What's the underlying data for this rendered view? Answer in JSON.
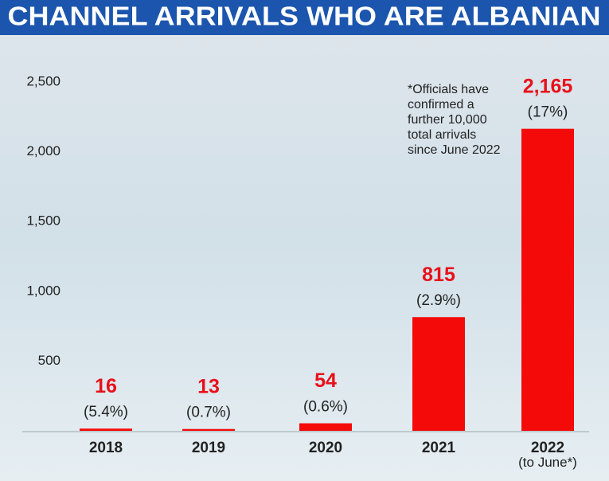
{
  "chart_data": {
    "type": "bar",
    "title": "CHANNEL ARRIVALS WHO ARE ALBANIAN",
    "categories": [
      "2018",
      "2019",
      "2020",
      "2021",
      "2022\n(to June*)"
    ],
    "values": [
      16,
      13,
      54,
      815,
      2165
    ],
    "value_labels": [
      "16",
      "13",
      "54",
      "815",
      "2,165"
    ],
    "share_labels": [
      "(5.4%)",
      "(0.7%)",
      "(0.6%)",
      "(2.9%)",
      "(17%)"
    ],
    "color": "#f50a0a",
    "ylim": [
      0,
      2500
    ],
    "yticks": [
      {
        "value": 500,
        "label": "500"
      },
      {
        "value": 1000,
        "label": "1,000"
      },
      {
        "value": 1500,
        "label": "1,500"
      },
      {
        "value": 2000,
        "label": "2,000"
      },
      {
        "value": 2500,
        "label": "2,500"
      }
    ],
    "annotation": [
      "*Officials have",
      "confirmed a",
      "further 10,000",
      "total arrivals",
      "since June 2022"
    ]
  }
}
